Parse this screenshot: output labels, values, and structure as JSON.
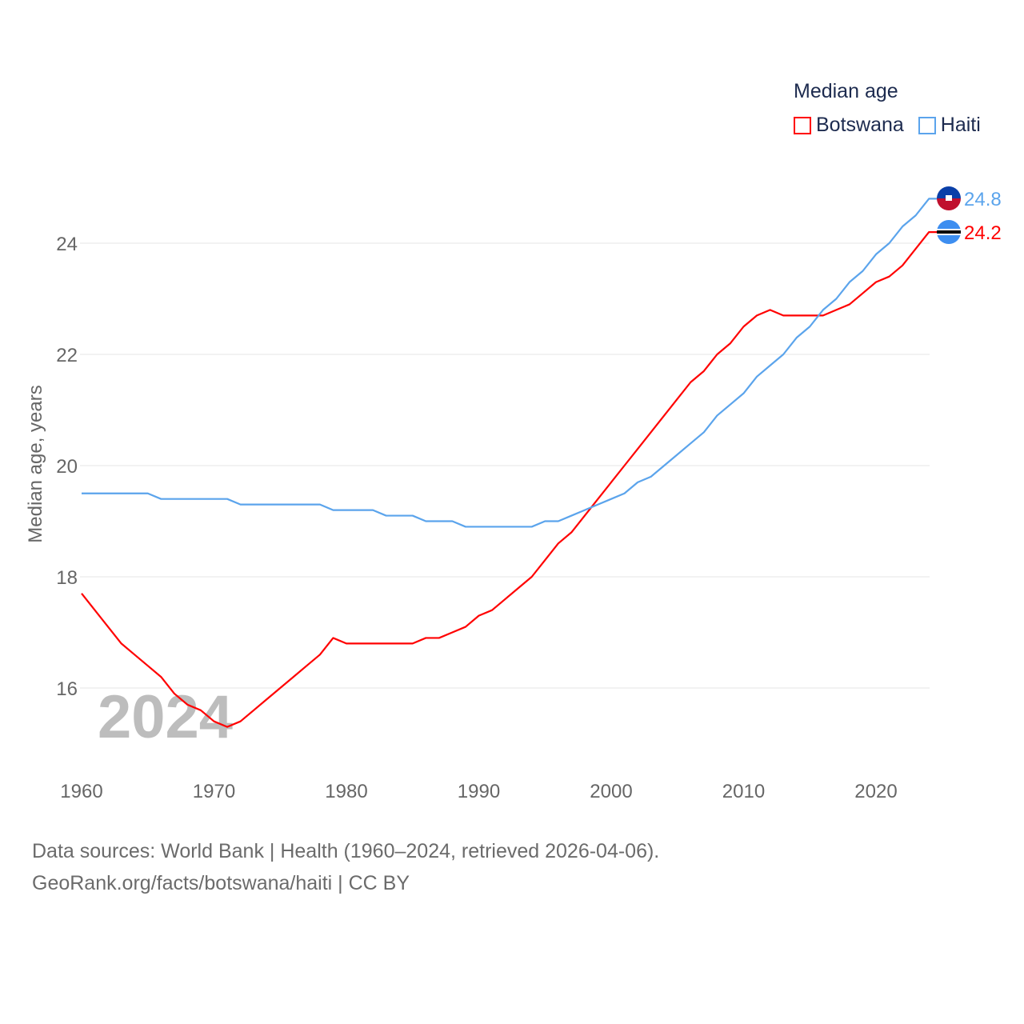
{
  "chart_data": {
    "type": "line",
    "title": "Median age",
    "ylabel": "Median age, years",
    "xlabel": "",
    "xlim": [
      1960,
      2024
    ],
    "ylim": [
      15,
      25
    ],
    "xticks": [
      "1960",
      "1970",
      "1980",
      "1990",
      "2000",
      "2010",
      "2020"
    ],
    "yticks": [
      "16",
      "18",
      "20",
      "22",
      "24"
    ],
    "grid": true,
    "legend_placement": "top-right",
    "watermark_year": "2024",
    "x": [
      1960,
      1961,
      1962,
      1963,
      1964,
      1965,
      1966,
      1967,
      1968,
      1969,
      1970,
      1971,
      1972,
      1973,
      1974,
      1975,
      1976,
      1977,
      1978,
      1979,
      1980,
      1981,
      1982,
      1983,
      1984,
      1985,
      1986,
      1987,
      1988,
      1989,
      1990,
      1991,
      1992,
      1993,
      1994,
      1995,
      1996,
      1997,
      1998,
      1999,
      2000,
      2001,
      2002,
      2003,
      2004,
      2005,
      2006,
      2007,
      2008,
      2009,
      2010,
      2011,
      2012,
      2013,
      2014,
      2015,
      2016,
      2017,
      2018,
      2019,
      2020,
      2021,
      2022,
      2023,
      2024
    ],
    "series": [
      {
        "name": "Botswana",
        "color": "#ff0000",
        "end_label": "24.2",
        "values": [
          17.7,
          17.4,
          17.1,
          16.8,
          16.6,
          16.4,
          16.2,
          15.9,
          15.7,
          15.6,
          15.4,
          15.3,
          15.4,
          15.6,
          15.8,
          16.0,
          16.2,
          16.4,
          16.6,
          16.9,
          16.8,
          16.8,
          16.8,
          16.8,
          16.8,
          16.8,
          16.9,
          16.9,
          17.0,
          17.1,
          17.3,
          17.4,
          17.6,
          17.8,
          18.0,
          18.3,
          18.6,
          18.8,
          19.1,
          19.4,
          19.7,
          20.0,
          20.3,
          20.6,
          20.9,
          21.2,
          21.5,
          21.7,
          22.0,
          22.2,
          22.5,
          22.7,
          22.8,
          22.7,
          22.7,
          22.7,
          22.7,
          22.8,
          22.9,
          23.1,
          23.3,
          23.4,
          23.6,
          23.9,
          24.2
        ]
      },
      {
        "name": "Haiti",
        "color": "#5ba4ec",
        "end_label": "24.8",
        "values": [
          19.5,
          19.5,
          19.5,
          19.5,
          19.5,
          19.5,
          19.4,
          19.4,
          19.4,
          19.4,
          19.4,
          19.4,
          19.3,
          19.3,
          19.3,
          19.3,
          19.3,
          19.3,
          19.3,
          19.2,
          19.2,
          19.2,
          19.2,
          19.1,
          19.1,
          19.1,
          19.0,
          19.0,
          19.0,
          18.9,
          18.9,
          18.9,
          18.9,
          18.9,
          18.9,
          19.0,
          19.0,
          19.1,
          19.2,
          19.3,
          19.4,
          19.5,
          19.7,
          19.8,
          20.0,
          20.2,
          20.4,
          20.6,
          20.9,
          21.1,
          21.3,
          21.6,
          21.8,
          22.0,
          22.3,
          22.5,
          22.8,
          23.0,
          23.3,
          23.5,
          23.8,
          24.0,
          24.3,
          24.5,
          24.8
        ]
      }
    ]
  },
  "source": {
    "line1": "Data sources: World Bank | Health (1960–2024, retrieved 2026-04-06).",
    "line2": "GeoRank.org/facts/botswana/haiti | CC BY"
  }
}
